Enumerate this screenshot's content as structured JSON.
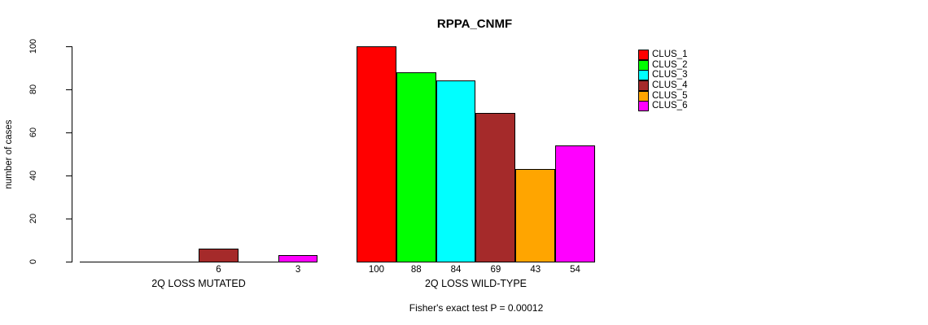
{
  "chart_data": {
    "type": "bar",
    "title": "RPPA_CNMF",
    "ylabel": "number of cases",
    "ylim": [
      0,
      100
    ],
    "yticks": [
      0,
      20,
      40,
      60,
      80,
      100
    ],
    "grid": false,
    "legend_position": "right",
    "clusters": [
      {
        "name": "CLUS_1",
        "color": "#ff0000"
      },
      {
        "name": "CLUS_2",
        "color": "#00ff00"
      },
      {
        "name": "CLUS_3",
        "color": "#00ffff"
      },
      {
        "name": "CLUS_4",
        "color": "#a52a2a"
      },
      {
        "name": "CLUS_5",
        "color": "#ffa500"
      },
      {
        "name": "CLUS_6",
        "color": "#ff00ff"
      }
    ],
    "groups": [
      {
        "label": "2Q LOSS MUTATED",
        "values": [
          0,
          0,
          0,
          6,
          0,
          3
        ]
      },
      {
        "label": "2Q LOSS WILD-TYPE",
        "values": [
          100,
          88,
          84,
          69,
          43,
          54
        ]
      }
    ],
    "annotation": "Fisher's exact test P = 0.00012"
  }
}
